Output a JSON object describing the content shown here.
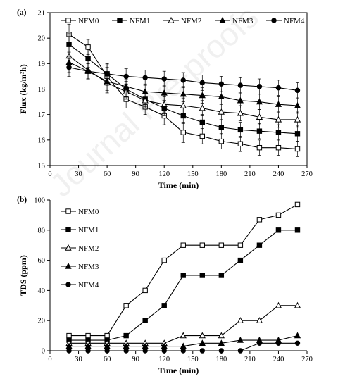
{
  "watermark": "Journal Pre-proofs",
  "chart_data": [
    {
      "type": "line",
      "panel_label": "(a)",
      "xlabel": "Time (min)",
      "ylabel": "Flux (kg/m²h)",
      "xlim": [
        0,
        270
      ],
      "ylim": [
        15,
        21
      ],
      "xticks": [
        0,
        30,
        60,
        90,
        120,
        150,
        180,
        210,
        240,
        270
      ],
      "yticks": [
        15,
        16,
        17,
        18,
        19,
        20,
        21
      ],
      "legend_position": "top",
      "grid": false,
      "x": [
        20,
        40,
        60,
        80,
        100,
        120,
        140,
        160,
        180,
        200,
        220,
        240,
        260
      ],
      "series": [
        {
          "name": "NFM0",
          "marker": "square-open",
          "values": [
            20.15,
            19.65,
            18.5,
            17.6,
            17.3,
            16.95,
            16.3,
            16.15,
            15.95,
            15.85,
            15.7,
            15.7,
            15.65
          ],
          "errors": [
            0.4,
            0.3,
            0.35,
            0.35,
            0.3,
            0.35,
            0.4,
            0.3,
            0.3,
            0.3,
            0.3,
            0.3,
            0.3
          ]
        },
        {
          "name": "NFM1",
          "marker": "square-filled",
          "values": [
            19.75,
            19.2,
            18.6,
            18.0,
            17.6,
            17.25,
            16.95,
            16.7,
            16.5,
            16.4,
            16.35,
            16.3,
            16.25
          ],
          "errors": [
            0.45,
            0.35,
            0.4,
            0.3,
            0.3,
            0.3,
            0.3,
            0.3,
            0.3,
            0.3,
            0.3,
            0.3,
            0.3
          ]
        },
        {
          "name": "NFM2",
          "marker": "triangle-open",
          "values": [
            19.3,
            18.75,
            18.25,
            17.9,
            17.55,
            17.4,
            17.35,
            17.25,
            17.1,
            17.05,
            16.9,
            16.8,
            16.8
          ],
          "errors": [
            0.45,
            0.35,
            0.4,
            0.3,
            0.3,
            0.3,
            0.3,
            0.3,
            0.3,
            0.3,
            0.3,
            0.3,
            0.3
          ]
        },
        {
          "name": "NFM3",
          "marker": "triangle-filled",
          "values": [
            19.05,
            18.7,
            18.3,
            18.1,
            17.9,
            17.85,
            17.8,
            17.75,
            17.7,
            17.55,
            17.5,
            17.4,
            17.35
          ],
          "errors": [
            0.4,
            0.3,
            0.35,
            0.3,
            0.3,
            0.3,
            0.3,
            0.3,
            0.3,
            0.3,
            0.3,
            0.3,
            0.3
          ]
        },
        {
          "name": "NFM4",
          "marker": "circle-filled",
          "values": [
            18.85,
            18.7,
            18.6,
            18.5,
            18.45,
            18.4,
            18.35,
            18.25,
            18.2,
            18.15,
            18.1,
            18.05,
            17.95
          ],
          "errors": [
            0.35,
            0.3,
            0.35,
            0.3,
            0.3,
            0.3,
            0.3,
            0.3,
            0.3,
            0.3,
            0.3,
            0.3,
            0.3
          ]
        }
      ]
    },
    {
      "type": "line",
      "panel_label": "(b)",
      "xlabel": "Time (min)",
      "ylabel": "TDS (ppm)",
      "xlim": [
        0,
        270
      ],
      "ylim": [
        0,
        100
      ],
      "xticks": [
        0,
        30,
        60,
        90,
        120,
        150,
        180,
        210,
        240,
        270
      ],
      "yticks": [
        0,
        20,
        40,
        60,
        80,
        100
      ],
      "legend_position": "left",
      "grid": false,
      "x": [
        20,
        40,
        60,
        80,
        100,
        120,
        140,
        160,
        180,
        200,
        220,
        240,
        260
      ],
      "series": [
        {
          "name": "NFM0",
          "marker": "square-open",
          "values": [
            10,
            10,
            10,
            30,
            40,
            60,
            70,
            70,
            70,
            70,
            87,
            90,
            97
          ]
        },
        {
          "name": "NFM1",
          "marker": "square-filled",
          "values": [
            7,
            7,
            7,
            10,
            20,
            30,
            50,
            50,
            50,
            60,
            70,
            80,
            80
          ]
        },
        {
          "name": "NFM2",
          "marker": "triangle-open",
          "values": [
            5,
            5,
            5,
            5,
            5,
            5,
            10,
            10,
            10,
            20,
            20,
            30,
            30
          ]
        },
        {
          "name": "NFM3",
          "marker": "triangle-filled",
          "values": [
            3,
            3,
            3,
            3,
            3,
            3,
            3,
            5,
            5,
            7,
            7,
            7,
            10
          ]
        },
        {
          "name": "NFM4",
          "marker": "circle-filled",
          "values": [
            0,
            0,
            0,
            0,
            0,
            0,
            0,
            0,
            0,
            0,
            5,
            5,
            5
          ]
        }
      ]
    }
  ]
}
